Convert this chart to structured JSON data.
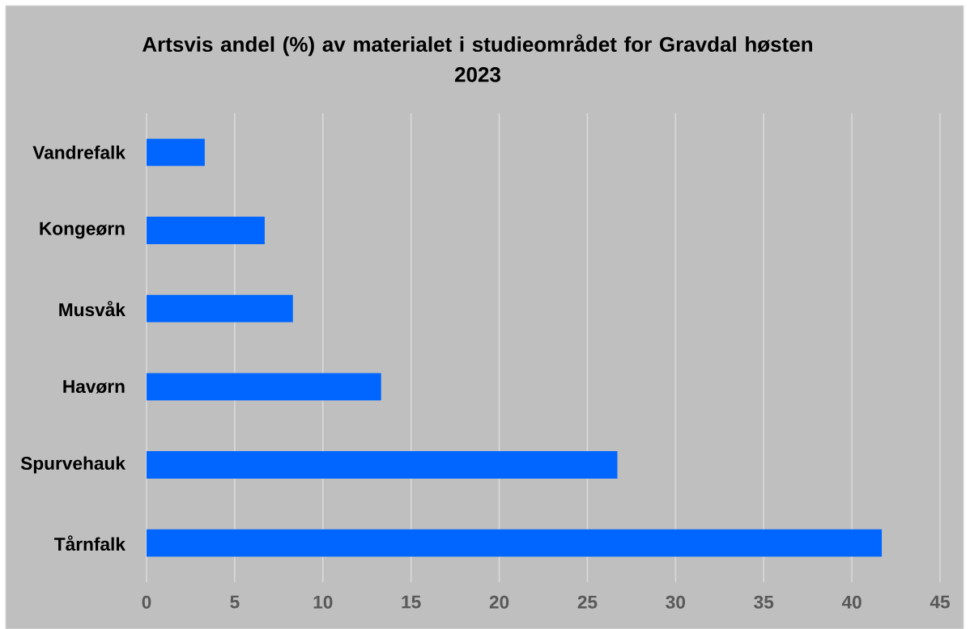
{
  "chart_data": {
    "type": "bar",
    "orientation": "horizontal",
    "title": "Artsvis andel (%) av materialet i studieområdet for Gravdal høsten 2023",
    "categories": [
      "Vandrefalk",
      "Kongeørn",
      "Musvåk",
      "Havørn",
      "Spurvehauk",
      "Tårnfalk"
    ],
    "values": [
      3.3,
      6.7,
      8.3,
      13.3,
      26.7,
      41.7
    ],
    "color": "#0066ff",
    "xlim": [
      0,
      45
    ],
    "xticks": [
      0,
      5,
      10,
      15,
      20,
      25,
      30,
      35,
      40,
      45
    ],
    "grid": "x"
  }
}
